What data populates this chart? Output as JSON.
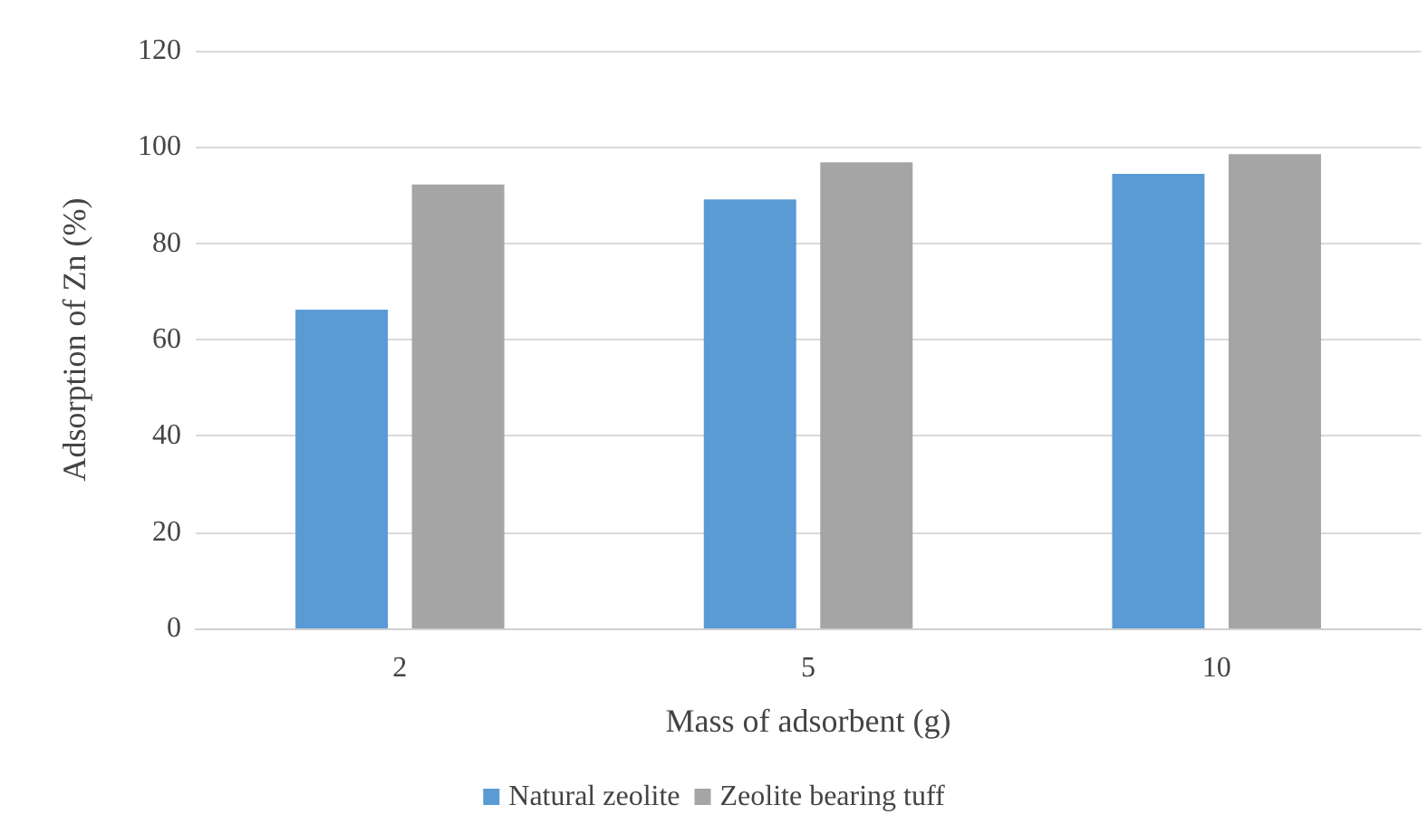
{
  "chart_data": {
    "type": "bar",
    "xlabel": "Mass of adsorbent (g)",
    "ylabel": "Adsorption of Zn (%)",
    "categories": [
      "2",
      "5",
      "10"
    ],
    "series": [
      {
        "name": "Natural zeolite",
        "color": "#5b9bd5",
        "values": [
          66.2,
          89.1,
          94.4
        ]
      },
      {
        "name": "Zeolite bearing tuff",
        "color": "#a5a5a5",
        "values": [
          92.2,
          96.8,
          98.5
        ]
      }
    ],
    "ylim": [
      0,
      120
    ],
    "yticks": [
      0,
      20,
      40,
      60,
      80,
      100,
      120
    ],
    "grid": "y",
    "legend": "bottom"
  }
}
